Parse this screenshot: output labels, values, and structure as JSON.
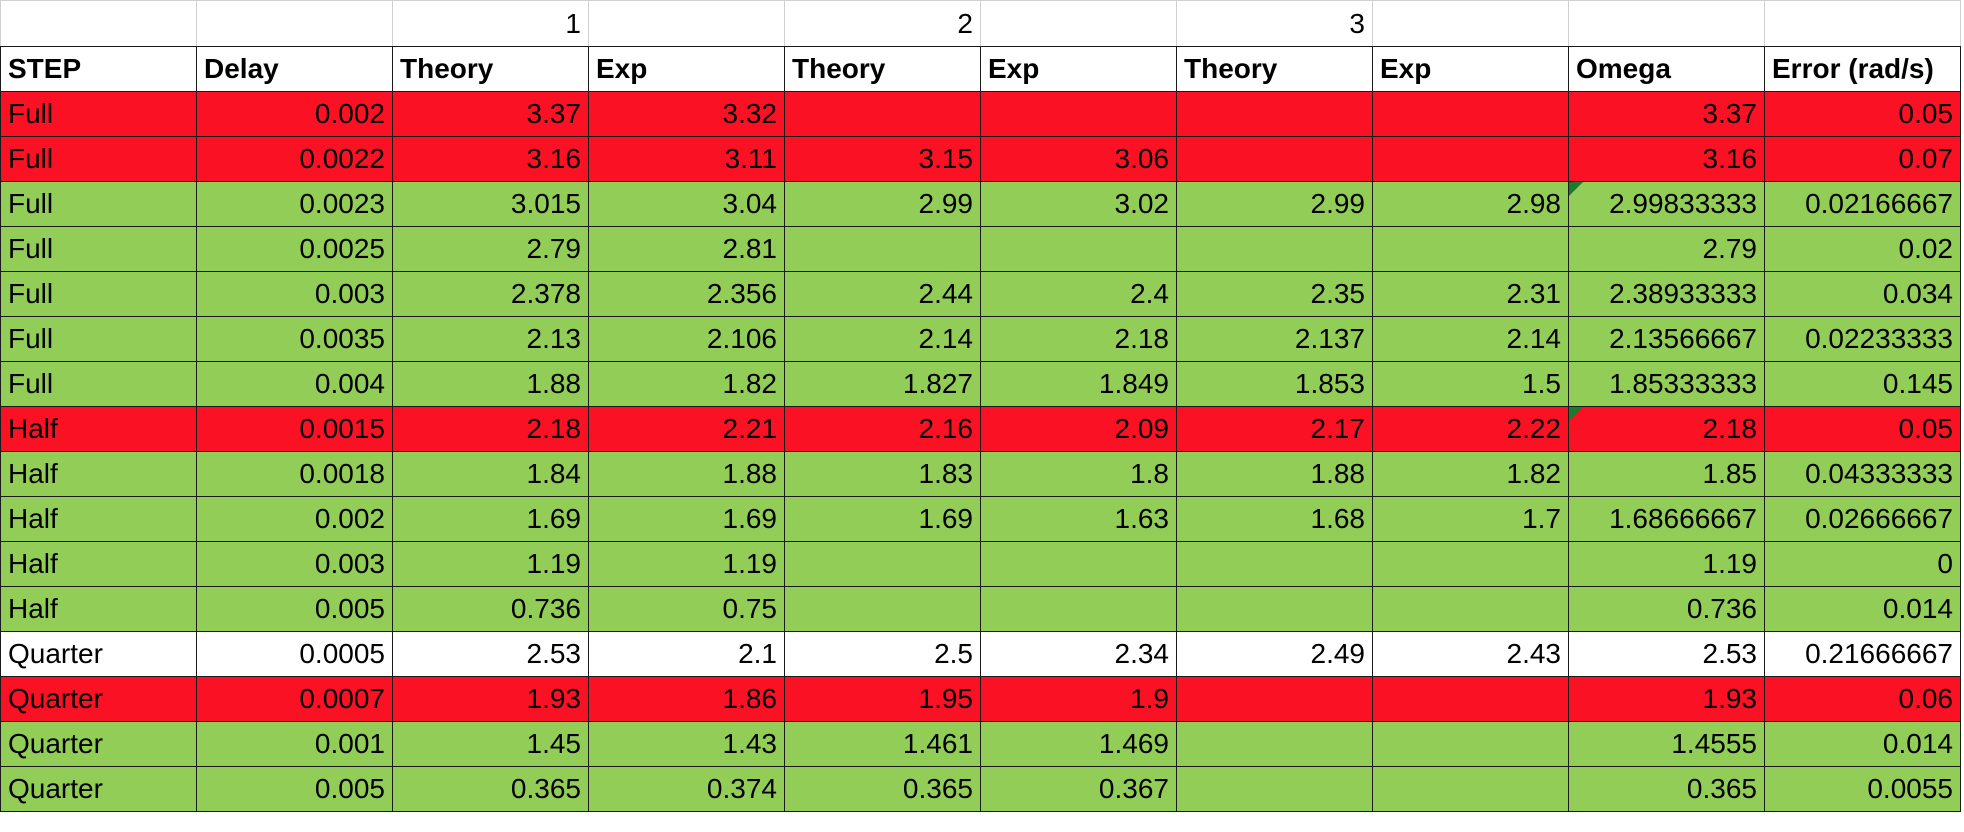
{
  "colors": {
    "red_row": "#fa1124",
    "green_row": "#92cd58",
    "white_row": "#ffffff",
    "comment_flag": "#1c7a2e"
  },
  "top_row": [
    "",
    "",
    "1",
    "",
    "2",
    "",
    "3",
    "",
    "",
    ""
  ],
  "headers": [
    "STEP",
    "Delay",
    "Theory",
    "Exp",
    "Theory",
    "Exp",
    "Theory",
    "Exp",
    "Omega",
    "Error (rad/s)"
  ],
  "rows": [
    {
      "color": "red",
      "cells": [
        "Full",
        "0.002",
        "3.37",
        "3.32",
        "",
        "",
        "",
        "",
        "3.37",
        "0.05"
      ]
    },
    {
      "color": "red",
      "cells": [
        "Full",
        "0.0022",
        "3.16",
        "3.11",
        "3.15",
        "3.06",
        "",
        "",
        "3.16",
        "0.07"
      ]
    },
    {
      "color": "green",
      "cells": [
        "Full",
        "0.0023",
        "3.015",
        "3.04",
        "2.99",
        "3.02",
        "2.99",
        "2.98",
        "2.99833333",
        "0.02166667"
      ],
      "comment_col": 8
    },
    {
      "color": "green",
      "cells": [
        "Full",
        "0.0025",
        "2.79",
        "2.81",
        "",
        "",
        "",
        "",
        "2.79",
        "0.02"
      ]
    },
    {
      "color": "green",
      "cells": [
        "Full",
        "0.003",
        "2.378",
        "2.356",
        "2.44",
        "2.4",
        "2.35",
        "2.31",
        "2.38933333",
        "0.034"
      ]
    },
    {
      "color": "green",
      "cells": [
        "Full",
        "0.0035",
        "2.13",
        "2.106",
        "2.14",
        "2.18",
        "2.137",
        "2.14",
        "2.13566667",
        "0.02233333"
      ]
    },
    {
      "color": "green",
      "cells": [
        "Full",
        "0.004",
        "1.88",
        "1.82",
        "1.827",
        "1.849",
        "1.853",
        "1.5",
        "1.85333333",
        "0.145"
      ]
    },
    {
      "color": "red",
      "cells": [
        "Half",
        "0.0015",
        "2.18",
        "2.21",
        "2.16",
        "2.09",
        "2.17",
        "2.22",
        "2.18",
        "0.05"
      ],
      "comment_col": 8
    },
    {
      "color": "green",
      "cells": [
        "Half",
        "0.0018",
        "1.84",
        "1.88",
        "1.83",
        "1.8",
        "1.88",
        "1.82",
        "1.85",
        "0.04333333"
      ]
    },
    {
      "color": "green",
      "cells": [
        "Half",
        "0.002",
        "1.69",
        "1.69",
        "1.69",
        "1.63",
        "1.68",
        "1.7",
        "1.68666667",
        "0.02666667"
      ]
    },
    {
      "color": "green",
      "cells": [
        "Half",
        "0.003",
        "1.19",
        "1.19",
        "",
        "",
        "",
        "",
        "1.19",
        "0"
      ]
    },
    {
      "color": "green",
      "cells": [
        "Half",
        "0.005",
        "0.736",
        "0.75",
        "",
        "",
        "",
        "",
        "0.736",
        "0.014"
      ]
    },
    {
      "color": "white",
      "cells": [
        "Quarter",
        "0.0005",
        "2.53",
        "2.1",
        "2.5",
        "2.34",
        "2.49",
        "2.43",
        "2.53",
        "0.21666667"
      ]
    },
    {
      "color": "red",
      "cells": [
        "Quarter",
        "0.0007",
        "1.93",
        "1.86",
        "1.95",
        "1.9",
        "",
        "",
        "1.93",
        "0.06"
      ]
    },
    {
      "color": "green",
      "cells": [
        "Quarter",
        "0.001",
        "1.45",
        "1.43",
        "1.461",
        "1.469",
        "",
        "",
        "1.4555",
        "0.014"
      ]
    },
    {
      "color": "green",
      "cells": [
        "Quarter",
        "0.005",
        "0.365",
        "0.374",
        "0.365",
        "0.367",
        "",
        "",
        "0.365",
        "0.0055"
      ]
    }
  ]
}
